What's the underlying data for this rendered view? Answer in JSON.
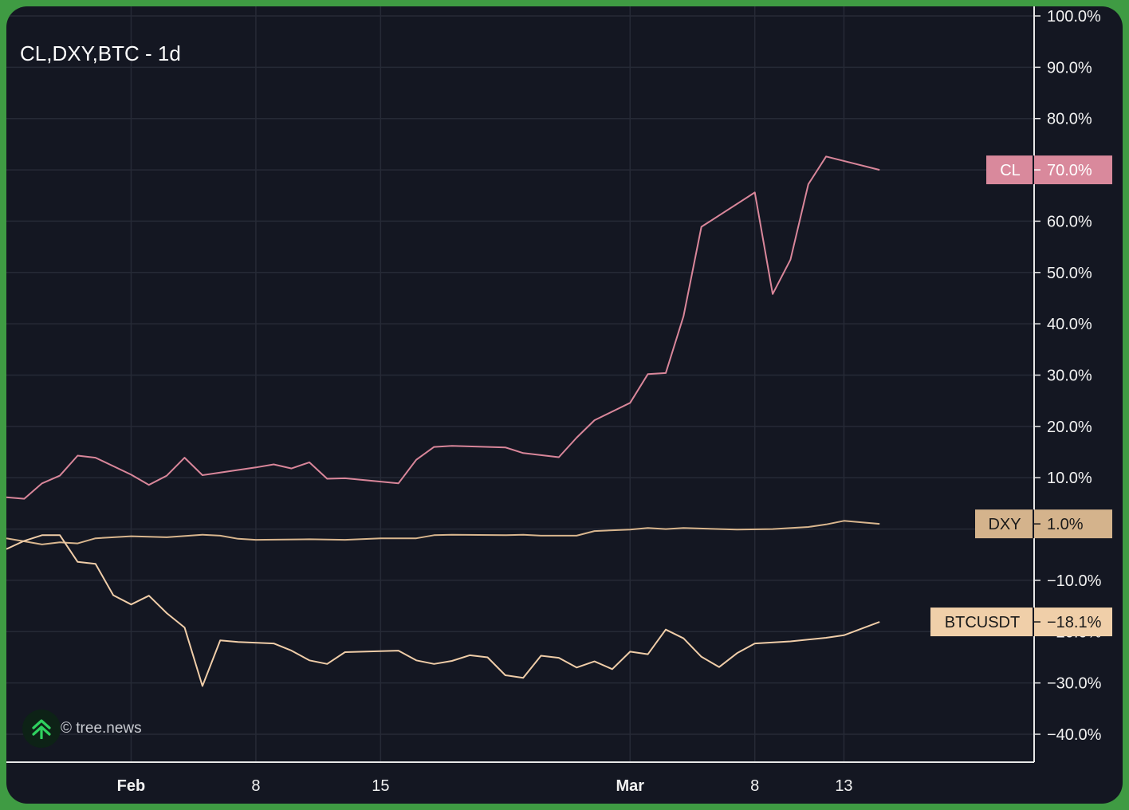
{
  "chart_data": {
    "type": "line",
    "title": "CL,DXY,BTC - 1d",
    "attribution": "© tree.news",
    "y_unit": "%",
    "ylim": [
      -45.5,
      101.5
    ],
    "y_ticks": [
      {
        "value": 100,
        "label": "100.0%"
      },
      {
        "value": 90,
        "label": "90.0%"
      },
      {
        "value": 80,
        "label": "80.0%"
      },
      {
        "value": 70,
        "label": "70.0%"
      },
      {
        "value": 60,
        "label": "60.0%"
      },
      {
        "value": 50,
        "label": "50.0%"
      },
      {
        "value": 40,
        "label": "40.0%"
      },
      {
        "value": 30,
        "label": "30.0%"
      },
      {
        "value": 20,
        "label": "20.0%"
      },
      {
        "value": 10,
        "label": "10.0%"
      },
      {
        "value": -10,
        "label": "−10.0%"
      },
      {
        "value": -20,
        "label": "−20.0%"
      },
      {
        "value": -30,
        "label": "−30.0%"
      },
      {
        "value": -40,
        "label": "−40.0%"
      }
    ],
    "x_ticks": [
      {
        "date": "2026-02-01",
        "label": "Feb",
        "bold": true
      },
      {
        "date": "2026-02-08",
        "label": "8",
        "bold": false
      },
      {
        "date": "2026-02-15",
        "label": "15",
        "bold": false
      },
      {
        "date": "2026-03-01",
        "label": "Mar",
        "bold": true
      },
      {
        "date": "2026-03-08",
        "label": "8",
        "bold": false
      },
      {
        "date": "2026-03-13",
        "label": "13",
        "bold": false
      }
    ],
    "xlim": [
      "2026-01-25",
      "2026-03-22"
    ],
    "grid": true,
    "series": [
      {
        "name": "CL",
        "color": "#d9869a",
        "label_bg": "#d9899c",
        "label_fg": "#ffffff",
        "last_value_label": "70.0%",
        "last_value": 70.0,
        "points": [
          [
            "2026-01-25",
            6.2
          ],
          [
            "2026-01-26",
            5.9
          ],
          [
            "2026-01-27",
            8.9
          ],
          [
            "2026-01-28",
            10.4
          ],
          [
            "2026-01-29",
            14.3
          ],
          [
            "2026-01-30",
            13.9
          ],
          [
            "2026-02-01",
            10.6
          ],
          [
            "2026-02-02",
            8.6
          ],
          [
            "2026-02-03",
            10.4
          ],
          [
            "2026-02-04",
            13.9
          ],
          [
            "2026-02-05",
            10.5
          ],
          [
            "2026-02-06",
            11.0
          ],
          [
            "2026-02-08",
            12.0
          ],
          [
            "2026-02-09",
            12.6
          ],
          [
            "2026-02-10",
            11.8
          ],
          [
            "2026-02-11",
            13.0
          ],
          [
            "2026-02-12",
            9.8
          ],
          [
            "2026-02-13",
            9.9
          ],
          [
            "2026-02-16",
            8.9
          ],
          [
            "2026-02-17",
            13.5
          ],
          [
            "2026-02-18",
            16.0
          ],
          [
            "2026-02-19",
            16.2
          ],
          [
            "2026-02-22",
            15.9
          ],
          [
            "2026-02-23",
            14.8
          ],
          [
            "2026-02-25",
            14.0
          ],
          [
            "2026-02-26",
            17.8
          ],
          [
            "2026-02-27",
            21.2
          ],
          [
            "2026-03-01",
            24.6
          ],
          [
            "2026-03-02",
            30.2
          ],
          [
            "2026-03-03",
            30.4
          ],
          [
            "2026-03-04",
            41.5
          ],
          [
            "2026-03-05",
            58.9
          ],
          [
            "2026-03-08",
            65.6
          ],
          [
            "2026-03-09",
            45.8
          ],
          [
            "2026-03-10",
            52.5
          ],
          [
            "2026-03-11",
            67.2
          ],
          [
            "2026-03-12",
            72.6
          ],
          [
            "2026-03-15",
            70.0
          ]
        ]
      },
      {
        "name": "DXY",
        "color": "#d9b68e",
        "label_bg": "#d4b38c",
        "label_fg": "#1a1a1a",
        "last_value_label": "1.0%",
        "last_value": 1.0,
        "points": [
          [
            "2026-01-25",
            -1.8
          ],
          [
            "2026-01-26",
            -2.4
          ],
          [
            "2026-01-27",
            -3.0
          ],
          [
            "2026-01-28",
            -2.6
          ],
          [
            "2026-01-29",
            -2.8
          ],
          [
            "2026-01-30",
            -1.8
          ],
          [
            "2026-02-01",
            -1.4
          ],
          [
            "2026-02-03",
            -1.6
          ],
          [
            "2026-02-05",
            -1.1
          ],
          [
            "2026-02-06",
            -1.3
          ],
          [
            "2026-02-07",
            -1.9
          ],
          [
            "2026-02-08",
            -2.1
          ],
          [
            "2026-02-11",
            -2.0
          ],
          [
            "2026-02-13",
            -2.1
          ],
          [
            "2026-02-15",
            -1.8
          ],
          [
            "2026-02-17",
            -1.8
          ],
          [
            "2026-02-18",
            -1.2
          ],
          [
            "2026-02-19",
            -1.1
          ],
          [
            "2026-02-22",
            -1.2
          ],
          [
            "2026-02-23",
            -1.1
          ],
          [
            "2026-02-24",
            -1.3
          ],
          [
            "2026-02-26",
            -1.3
          ],
          [
            "2026-02-27",
            -0.4
          ],
          [
            "2026-03-01",
            -0.1
          ],
          [
            "2026-03-02",
            0.2
          ],
          [
            "2026-03-03",
            0.0
          ],
          [
            "2026-03-04",
            0.2
          ],
          [
            "2026-03-06",
            0.0
          ],
          [
            "2026-03-07",
            -0.1
          ],
          [
            "2026-03-09",
            0.0
          ],
          [
            "2026-03-11",
            0.4
          ],
          [
            "2026-03-12",
            0.9
          ],
          [
            "2026-03-13",
            1.6
          ],
          [
            "2026-03-15",
            1.0
          ]
        ]
      },
      {
        "name": "BTCUSDT",
        "color": "#f0cda8",
        "label_bg": "#f0cfa9",
        "label_fg": "#1a1a1a",
        "last_value_label": "−18.1%",
        "last_value": -18.1,
        "points": [
          [
            "2026-01-25",
            -3.9
          ],
          [
            "2026-01-26",
            -2.3
          ],
          [
            "2026-01-27",
            -1.2
          ],
          [
            "2026-01-28",
            -1.2
          ],
          [
            "2026-01-29",
            -6.4
          ],
          [
            "2026-01-30",
            -6.8
          ],
          [
            "2026-01-31",
            -12.9
          ],
          [
            "2026-02-01",
            -14.7
          ],
          [
            "2026-02-02",
            -13.0
          ],
          [
            "2026-02-03",
            -16.4
          ],
          [
            "2026-02-04",
            -19.2
          ],
          [
            "2026-02-05",
            -30.6
          ],
          [
            "2026-02-06",
            -21.7
          ],
          [
            "2026-02-07",
            -22.0
          ],
          [
            "2026-02-09",
            -22.3
          ],
          [
            "2026-02-10",
            -23.7
          ],
          [
            "2026-02-11",
            -25.6
          ],
          [
            "2026-02-12",
            -26.3
          ],
          [
            "2026-02-13",
            -24.0
          ],
          [
            "2026-02-14",
            -23.9
          ],
          [
            "2026-02-16",
            -23.7
          ],
          [
            "2026-02-17",
            -25.6
          ],
          [
            "2026-02-18",
            -26.3
          ],
          [
            "2026-02-19",
            -25.7
          ],
          [
            "2026-02-20",
            -24.6
          ],
          [
            "2026-02-21",
            -25.0
          ],
          [
            "2026-02-22",
            -28.5
          ],
          [
            "2026-02-23",
            -29.0
          ],
          [
            "2026-02-24",
            -24.7
          ],
          [
            "2026-02-25",
            -25.1
          ],
          [
            "2026-02-26",
            -27.0
          ],
          [
            "2026-02-27",
            -25.8
          ],
          [
            "2026-02-28",
            -27.3
          ],
          [
            "2026-03-01",
            -23.9
          ],
          [
            "2026-03-02",
            -24.4
          ],
          [
            "2026-03-03",
            -19.6
          ],
          [
            "2026-03-04",
            -21.3
          ],
          [
            "2026-03-05",
            -24.9
          ],
          [
            "2026-03-06",
            -26.9
          ],
          [
            "2026-03-07",
            -24.2
          ],
          [
            "2026-03-08",
            -22.3
          ],
          [
            "2026-03-10",
            -21.9
          ],
          [
            "2026-03-12",
            -21.2
          ],
          [
            "2026-03-13",
            -20.7
          ],
          [
            "2026-03-14",
            -19.4
          ],
          [
            "2026-03-15",
            -18.1
          ]
        ]
      }
    ]
  }
}
